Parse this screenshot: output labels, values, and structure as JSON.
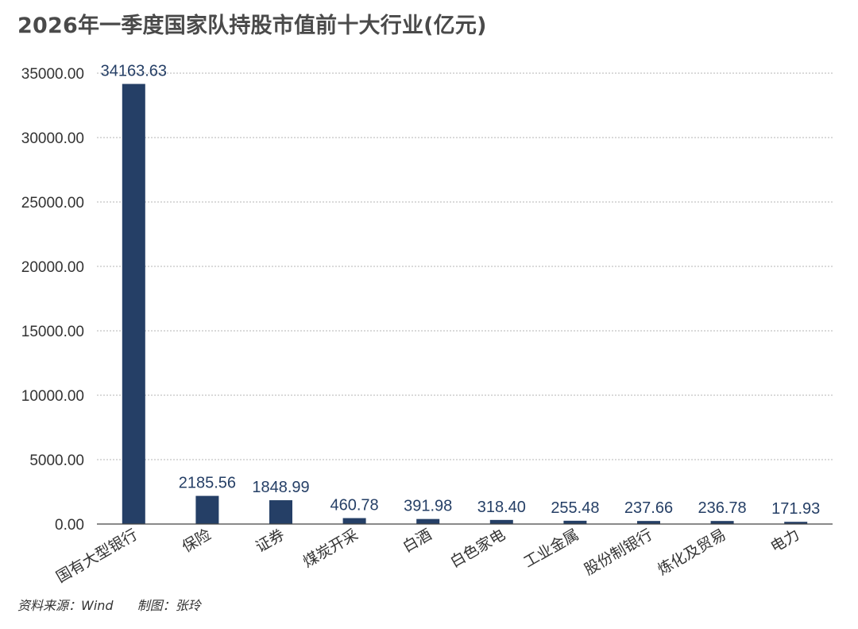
{
  "title": "2026年一季度国家队持股市值前十大行业(亿元)",
  "footer": {
    "source": "资料来源：Wind",
    "author": "制图：张玲"
  },
  "colors": {
    "bar": "#253f66",
    "label": "#253f66",
    "axis_text": "#333333",
    "grid": "#b5b5b5",
    "title": "#4a4a4a"
  },
  "chart_data": {
    "type": "bar",
    "title": "2026年一季度国家队持股市值前十大行业(亿元)",
    "xlabel": "",
    "ylabel": "",
    "ylim": [
      0,
      35000
    ],
    "y_ticks": [
      0,
      5000,
      10000,
      15000,
      20000,
      25000,
      30000,
      35000
    ],
    "y_tick_labels": [
      "0.00",
      "5000.00",
      "10000.00",
      "15000.00",
      "20000.00",
      "25000.00",
      "30000.00",
      "35000.00"
    ],
    "grid": true,
    "legend": "none",
    "categories": [
      "国有大型银行",
      "保险",
      "证券",
      "煤炭开采",
      "白酒",
      "白色家电",
      "工业金属",
      "股份制银行",
      "炼化及贸易",
      "电力"
    ],
    "values": [
      34163.63,
      2185.56,
      1848.99,
      460.78,
      391.98,
      318.4,
      255.48,
      237.66,
      236.78,
      171.93
    ],
    "value_labels": [
      "34163.63",
      "2185.56",
      "1848.99",
      "460.78",
      "391.98",
      "318.40",
      "255.48",
      "237.66",
      "236.78",
      "171.93"
    ]
  }
}
